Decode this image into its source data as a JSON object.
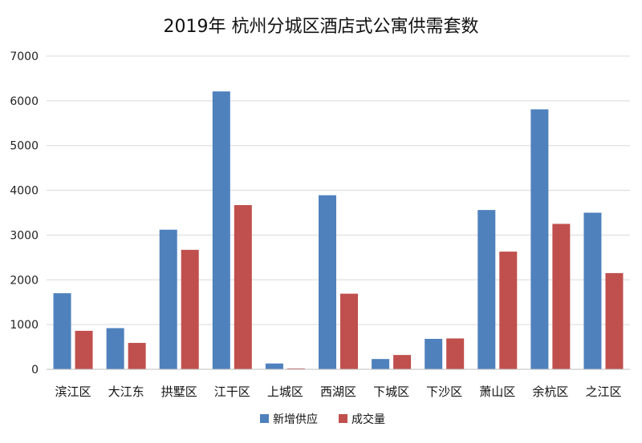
{
  "chart_data": {
    "type": "bar",
    "title": "2019年 杭州分城区酒店式公寓供需套数",
    "categories": [
      "滨江区",
      "大江东",
      "拱墅区",
      "江干区",
      "上城区",
      "西湖区",
      "下城区",
      "下沙区",
      "萧山区",
      "余杭区",
      "之江区"
    ],
    "series": [
      {
        "name": "新增供应",
        "color": "#4f81bd",
        "values": [
          1700,
          920,
          3120,
          6210,
          130,
          3890,
          230,
          680,
          3560,
          5810,
          3500
        ]
      },
      {
        "name": "成交量",
        "color": "#c0504d",
        "values": [
          860,
          590,
          2670,
          3670,
          20,
          1690,
          320,
          690,
          2630,
          3250,
          2150
        ]
      }
    ],
    "ylim": [
      0,
      7000
    ],
    "yticks": [
      0,
      1000,
      2000,
      3000,
      4000,
      5000,
      6000,
      7000
    ],
    "grid": true,
    "legend_position": "bottom"
  }
}
